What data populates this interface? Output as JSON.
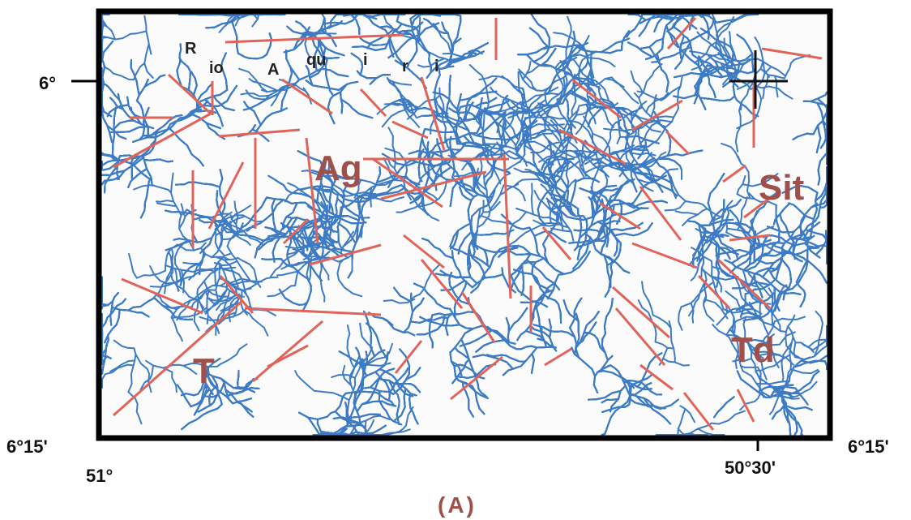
{
  "map": {
    "river_label": [
      "R",
      "io",
      "A",
      "qu",
      "i",
      "r",
      "i"
    ],
    "units": [
      "Ag",
      "Sit",
      "T",
      "Td"
    ],
    "latitude_labels": [
      "6°",
      "6°15'",
      "6°15'"
    ],
    "longitude_labels": [
      "51°",
      "50°30'"
    ],
    "caption": "(A)"
  }
}
